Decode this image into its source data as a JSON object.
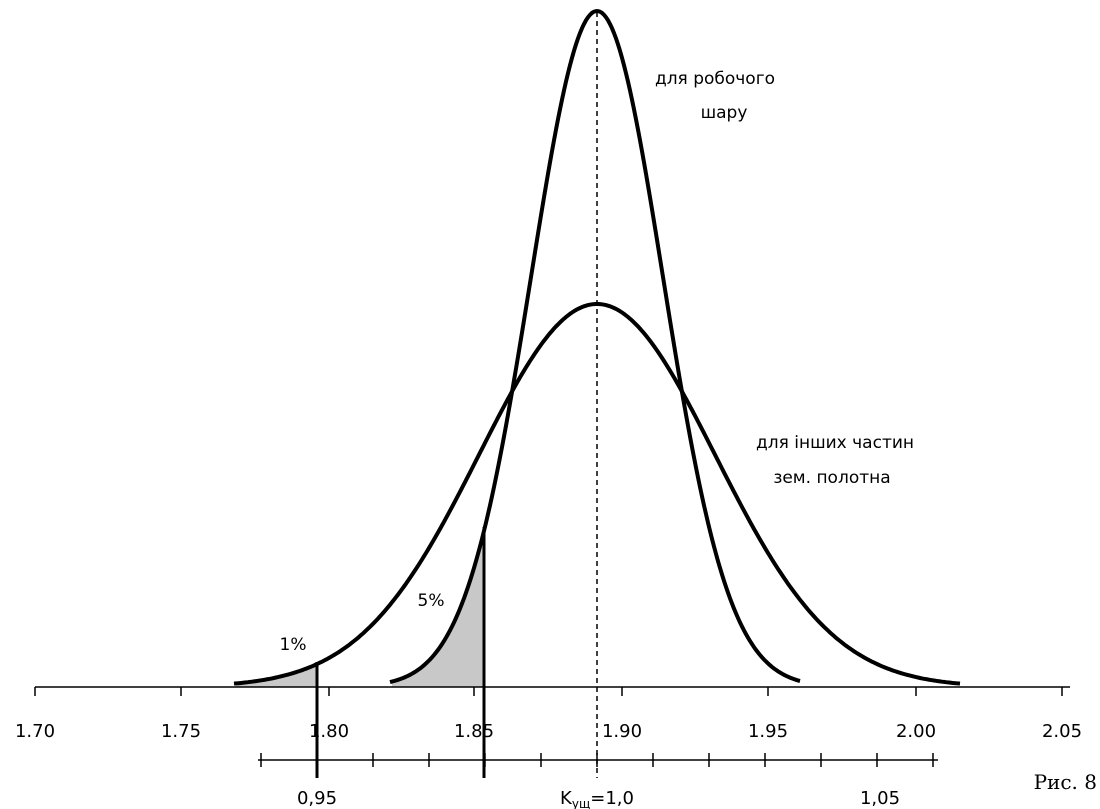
{
  "diagram": {
    "top_axis_ticks": [
      "1.70",
      "1.75",
      "1.80",
      "1.85",
      "1.90",
      "1.95",
      "2.00",
      "2.05"
    ],
    "bottom_axis_labels": {
      "left": "0,95",
      "center_main": "K",
      "center_sub": "ущ",
      "center_tail": "=1,0",
      "right": "1,05"
    },
    "curve_labels": {
      "narrow_line1": "для робочого",
      "narrow_line2": "шару",
      "wide_line1": "для інших частин",
      "wide_line2": "зем. полотна"
    },
    "area_labels": {
      "one_percent": "1%",
      "five_percent": "5%"
    },
    "figure_label": "Рис. 8",
    "shade_color": "#c8c8c8"
  }
}
